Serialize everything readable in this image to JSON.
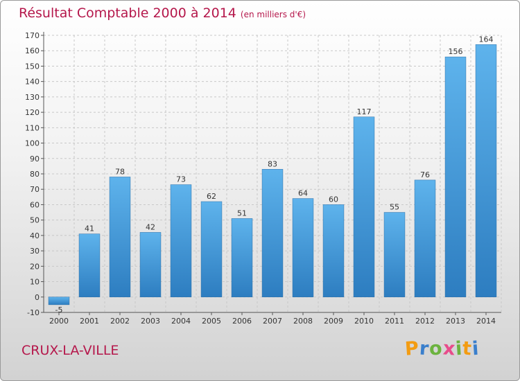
{
  "header": {
    "title": "Résultat Comptable 2000 à 2014",
    "subtitle": "(en milliers d'€)"
  },
  "footer": {
    "location": "CRUX-LA-VILLE",
    "brand": "Proxiti"
  },
  "colors": {
    "title": "#b5174b",
    "bar_top": "#5eb3ec",
    "bar_bottom": "#2d7dc0",
    "grid": "#c8c8c8"
  },
  "chart_data": {
    "type": "bar",
    "title": "Résultat Comptable 2000 à 2014",
    "subtitle": "(en milliers d'€)",
    "xlabel": "",
    "ylabel": "",
    "categories": [
      "2000",
      "2001",
      "2002",
      "2003",
      "2004",
      "2005",
      "2006",
      "2007",
      "2008",
      "2009",
      "2010",
      "2011",
      "2012",
      "2013",
      "2014"
    ],
    "values": [
      -5,
      41,
      78,
      42,
      73,
      62,
      51,
      83,
      64,
      60,
      117,
      55,
      76,
      156,
      164
    ],
    "ylim": [
      -10,
      170
    ],
    "yticks": [
      -10,
      0,
      10,
      20,
      30,
      40,
      50,
      60,
      70,
      80,
      90,
      100,
      110,
      120,
      130,
      140,
      150,
      160,
      170
    ],
    "grid": true
  }
}
